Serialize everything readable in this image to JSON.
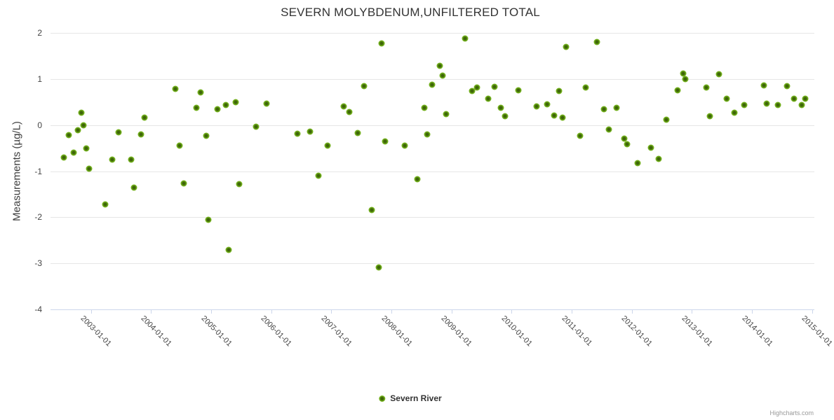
{
  "chart": {
    "title": "SEVERN MOLYBDENUM,UNFILTERED TOTAL",
    "y_axis_title": "Measurements (µg/L)",
    "legend_label": "Severn River",
    "credit": "Highcharts.com"
  },
  "chart_data": {
    "type": "scatter",
    "title": "SEVERN MOLYBDENUM,UNFILTERED TOTAL",
    "xlabel": "",
    "ylabel": "Measurements (µg/L)",
    "legend_position": "bottom-center",
    "grid": "horizontal",
    "xlim": [
      2002.32,
      2015.02
    ],
    "ylim": [
      -4,
      2
    ],
    "y_ticks": [
      {
        "value": 2,
        "label": "2"
      },
      {
        "value": 1,
        "label": "1"
      },
      {
        "value": 0,
        "label": "0"
      },
      {
        "value": -1,
        "label": "-1"
      },
      {
        "value": -2,
        "label": "-2"
      },
      {
        "value": -3,
        "label": "-3"
      },
      {
        "value": -4,
        "label": "-4"
      }
    ],
    "x_ticks": [
      {
        "value": 2003,
        "label": "2003-01-01"
      },
      {
        "value": 2004,
        "label": "2004-01-01"
      },
      {
        "value": 2005,
        "label": "2005-01-01"
      },
      {
        "value": 2006,
        "label": "2006-01-01"
      },
      {
        "value": 2007,
        "label": "2007-01-01"
      },
      {
        "value": 2008,
        "label": "2008-01-01"
      },
      {
        "value": 2009,
        "label": "2009-01-01"
      },
      {
        "value": 2010,
        "label": "2010-01-01"
      },
      {
        "value": 2011,
        "label": "2011-01-01"
      },
      {
        "value": 2012,
        "label": "2012-01-01"
      },
      {
        "value": 2013,
        "label": "2013-01-01"
      },
      {
        "value": 2014,
        "label": "2014-01-01"
      },
      {
        "value": 2015,
        "label": "2015-01-01"
      }
    ],
    "series": [
      {
        "name": "Severn River",
        "color": "#77b41f",
        "marker_center_color": "#3e6508",
        "points": [
          [
            2002.54,
            -0.7
          ],
          [
            2002.62,
            -0.22
          ],
          [
            2002.7,
            -0.6
          ],
          [
            2002.77,
            -0.11
          ],
          [
            2002.83,
            0.27
          ],
          [
            2002.87,
            0.0
          ],
          [
            2002.91,
            -0.51
          ],
          [
            2002.96,
            -0.94
          ],
          [
            2003.23,
            -1.72
          ],
          [
            2003.35,
            -0.75
          ],
          [
            2003.45,
            -0.16
          ],
          [
            2003.66,
            -0.75
          ],
          [
            2003.71,
            -1.36
          ],
          [
            2003.82,
            -0.2
          ],
          [
            2003.88,
            0.16
          ],
          [
            2004.4,
            0.79
          ],
          [
            2004.47,
            -0.45
          ],
          [
            2004.54,
            -1.26
          ],
          [
            2004.75,
            0.37
          ],
          [
            2004.82,
            0.71
          ],
          [
            2004.91,
            -0.23
          ],
          [
            2004.95,
            -2.05
          ],
          [
            2005.1,
            0.34
          ],
          [
            2005.24,
            0.43
          ],
          [
            2005.29,
            -2.71
          ],
          [
            2005.4,
            0.5
          ],
          [
            2005.46,
            -1.28
          ],
          [
            2005.74,
            -0.03
          ],
          [
            2005.91,
            0.47
          ],
          [
            2006.43,
            -0.19
          ],
          [
            2006.64,
            -0.14
          ],
          [
            2006.78,
            -1.1
          ],
          [
            2006.93,
            -0.45
          ],
          [
            2007.2,
            0.4
          ],
          [
            2007.29,
            0.28
          ],
          [
            2007.43,
            -0.17
          ],
          [
            2007.54,
            0.84
          ],
          [
            2007.67,
            -1.85
          ],
          [
            2007.78,
            -3.09
          ],
          [
            2007.83,
            1.77
          ],
          [
            2007.89,
            -0.36
          ],
          [
            2008.22,
            -0.44
          ],
          [
            2008.43,
            -1.18
          ],
          [
            2008.54,
            0.37
          ],
          [
            2008.59,
            -0.2
          ],
          [
            2008.67,
            0.88
          ],
          [
            2008.8,
            1.28
          ],
          [
            2008.85,
            1.08
          ],
          [
            2008.9,
            0.24
          ],
          [
            2009.22,
            1.88
          ],
          [
            2009.34,
            0.74
          ],
          [
            2009.42,
            0.81
          ],
          [
            2009.6,
            0.57
          ],
          [
            2009.71,
            0.83
          ],
          [
            2009.81,
            0.38
          ],
          [
            2009.88,
            0.19
          ],
          [
            2010.11,
            0.76
          ],
          [
            2010.41,
            0.4
          ],
          [
            2010.58,
            0.45
          ],
          [
            2010.7,
            0.21
          ],
          [
            2010.78,
            0.74
          ],
          [
            2010.84,
            0.16
          ],
          [
            2010.9,
            1.7
          ],
          [
            2011.13,
            -0.24
          ],
          [
            2011.23,
            0.82
          ],
          [
            2011.41,
            1.8
          ],
          [
            2011.53,
            0.35
          ],
          [
            2011.61,
            -0.09
          ],
          [
            2011.74,
            0.37
          ],
          [
            2011.87,
            -0.29
          ],
          [
            2011.91,
            -0.41
          ],
          [
            2012.09,
            -0.83
          ],
          [
            2012.31,
            -0.49
          ],
          [
            2012.44,
            -0.73
          ],
          [
            2012.57,
            0.11
          ],
          [
            2012.75,
            0.75
          ],
          [
            2012.85,
            1.12
          ],
          [
            2012.88,
            1.0
          ],
          [
            2013.23,
            0.81
          ],
          [
            2013.29,
            0.2
          ],
          [
            2013.45,
            1.1
          ],
          [
            2013.57,
            0.57
          ],
          [
            2013.7,
            0.27
          ],
          [
            2013.87,
            0.44
          ],
          [
            2014.19,
            0.86
          ],
          [
            2014.24,
            0.47
          ],
          [
            2014.42,
            0.43
          ],
          [
            2014.58,
            0.84
          ],
          [
            2014.69,
            0.57
          ],
          [
            2014.82,
            0.44
          ],
          [
            2014.88,
            0.57
          ]
        ]
      }
    ]
  }
}
